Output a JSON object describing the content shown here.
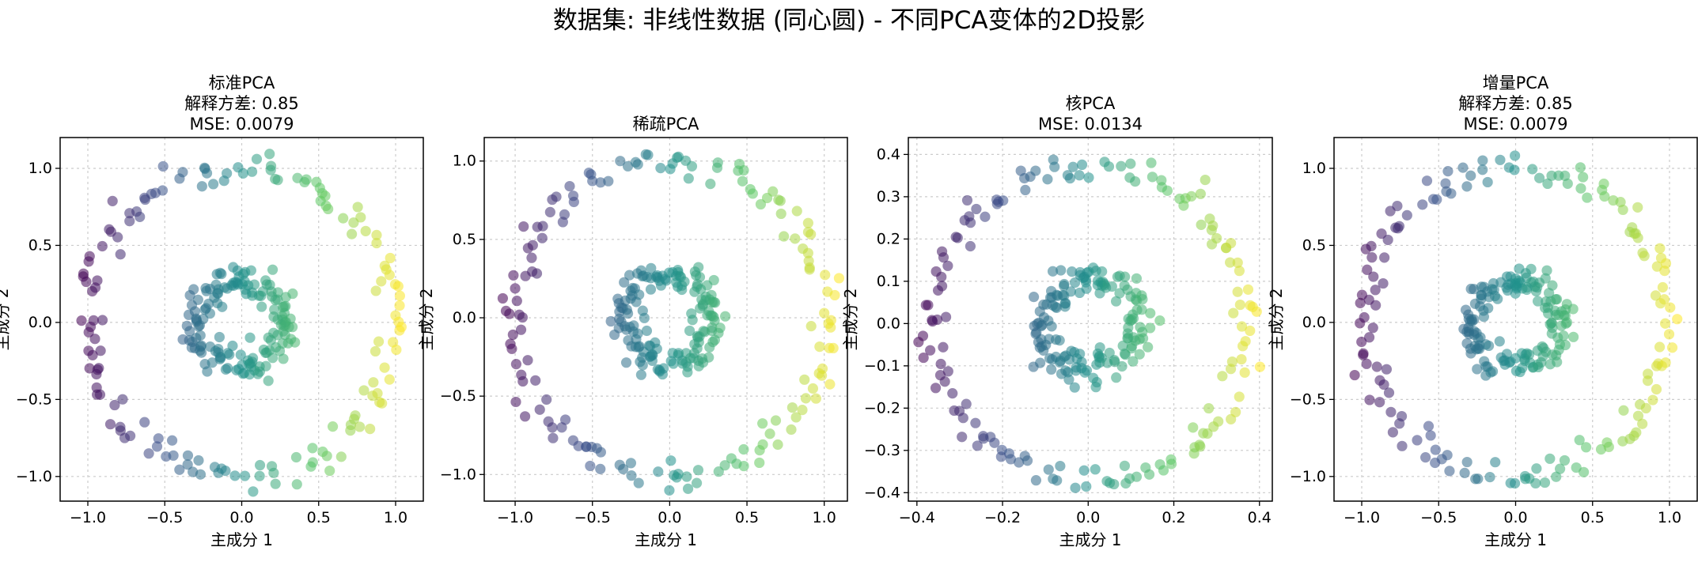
{
  "figure_title": "数据集: 非线性数据 (同心圆) - 不同PCA变体的2D投影",
  "colormap": [
    "#440154",
    "#3b528b",
    "#21918c",
    "#5ec962",
    "#fde725"
  ],
  "point_alpha": 0.55,
  "chart_data": [
    {
      "type": "scatter",
      "title_lines": [
        "标准PCA",
        "解释方差: 0.85",
        "MSE: 0.0079"
      ],
      "xlabel": "主成分 1",
      "ylabel": "主成分 2",
      "xlim": [
        -1.18,
        1.18
      ],
      "ylim": [
        -1.16,
        1.2
      ],
      "xticks": [
        -1.0,
        -0.5,
        0.0,
        0.5,
        1.0
      ],
      "xtick_labels": [
        "−1.0",
        "−0.5",
        "0.0",
        "0.5",
        "1.0"
      ],
      "yticks": [
        -1.0,
        -0.5,
        0.0,
        0.5,
        1.0
      ],
      "ytick_labels": [
        "−1.0",
        "−0.5",
        "0.0",
        "0.5",
        "1.0"
      ],
      "grid": true,
      "rings": {
        "outer_radius": 1.0,
        "inner_radius": 0.28,
        "outer_noise": 0.05,
        "inner_noise": 0.055,
        "angle_offset_deg": 0,
        "points_per_ring": 150
      }
    },
    {
      "type": "scatter",
      "title_lines": [
        "稀疏PCA"
      ],
      "xlabel": "主成分 1",
      "ylabel": "主成分 2",
      "xlim": [
        -1.2,
        1.15
      ],
      "ylim": [
        -1.17,
        1.15
      ],
      "xticks": [
        -1.0,
        -0.5,
        0.0,
        0.5,
        1.0
      ],
      "xtick_labels": [
        "−1.0",
        "−0.5",
        "0.0",
        "0.5",
        "1.0"
      ],
      "yticks": [
        -1.0,
        -0.5,
        0.0,
        0.5,
        1.0
      ],
      "ytick_labels": [
        "−1.0",
        "−0.5",
        "0.0",
        "0.5",
        "1.0"
      ],
      "grid": true,
      "rings": {
        "outer_radius": 1.0,
        "inner_radius": 0.28,
        "outer_noise": 0.05,
        "inner_noise": 0.055,
        "angle_offset_deg": 8,
        "points_per_ring": 150
      }
    },
    {
      "type": "scatter",
      "title_lines": [
        "核PCA",
        "MSE: 0.0134"
      ],
      "xlabel": "主成分 1",
      "ylabel": "主成分 2",
      "xlim": [
        -0.42,
        0.43
      ],
      "ylim": [
        -0.42,
        0.44
      ],
      "xticks": [
        -0.4,
        -0.2,
        0.0,
        0.2,
        0.4
      ],
      "xtick_labels": [
        "−0.4",
        "−0.2",
        "0.0",
        "0.2",
        "0.4"
      ],
      "yticks": [
        -0.4,
        -0.3,
        -0.2,
        -0.1,
        0.0,
        0.1,
        0.2,
        0.3,
        0.4
      ],
      "ytick_labels": [
        "−0.4",
        "−0.3",
        "−0.2",
        "−0.1",
        "0.0",
        "0.1",
        "0.2",
        "0.3",
        "0.4"
      ],
      "grid": true,
      "rings": {
        "outer_radius": 0.37,
        "inner_radius": 0.11,
        "outer_noise": 0.018,
        "inner_noise": 0.022,
        "angle_offset_deg": -5,
        "points_per_ring": 150
      }
    },
    {
      "type": "scatter",
      "title_lines": [
        "增量PCA",
        "解释方差: 0.85",
        "MSE: 0.0079"
      ],
      "xlabel": "主成分 1",
      "ylabel": "主成分 2",
      "xlim": [
        -1.18,
        1.18
      ],
      "ylim": [
        -1.16,
        1.2
      ],
      "xticks": [
        -1.0,
        -0.5,
        0.0,
        0.5,
        1.0
      ],
      "xtick_labels": [
        "−1.0",
        "−0.5",
        "0.0",
        "0.5",
        "1.0"
      ],
      "yticks": [
        -1.0,
        -0.5,
        0.0,
        0.5,
        1.0
      ],
      "ytick_labels": [
        "−1.0",
        "−0.5",
        "0.0",
        "0.5",
        "1.0"
      ],
      "grid": true,
      "rings": {
        "outer_radius": 1.0,
        "inner_radius": 0.28,
        "outer_noise": 0.05,
        "inner_noise": 0.055,
        "angle_offset_deg": 0,
        "points_per_ring": 150
      }
    }
  ]
}
